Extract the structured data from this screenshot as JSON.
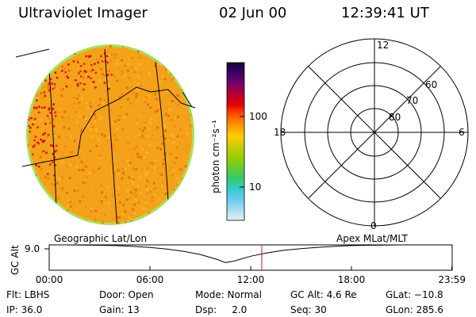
{
  "header": {
    "title": "Ultraviolet Imager",
    "date": "02 Jun 00",
    "time": "12:39:41 UT"
  },
  "left_panel": {
    "label": "Geographic Lat/Lon"
  },
  "right_panel": {
    "label": "Apex MLat/MLT",
    "mlt_labels": [
      "12",
      "18",
      "6",
      "0"
    ],
    "mlat_labels": [
      "60",
      "70",
      "80"
    ]
  },
  "colorbar": {
    "unit_label": "photon cm⁻²s⁻¹",
    "ticks": [
      "100",
      "10"
    ],
    "colors": [
      "#1a0033",
      "#3b0066",
      "#7a0066",
      "#b30033",
      "#e60000",
      "#ff5500",
      "#ff9900",
      "#ffcc00",
      "#cccc00",
      "#99cc00",
      "#66cc33",
      "#33cc66",
      "#33cccc",
      "#66ccee",
      "#aaddee",
      "#e6f0f0"
    ]
  },
  "chart_data": {
    "type": "line",
    "title": "",
    "ylabel": "GC Alt",
    "ytick": "9.0",
    "x_ticks": [
      "00:00",
      "06:00",
      "12:00",
      "18:00",
      "23:59"
    ],
    "x_hours": [
      0,
      1,
      2,
      3,
      4,
      5,
      6,
      7,
      8,
      9,
      10,
      10.5,
      11,
      12,
      13,
      14,
      15,
      16,
      17,
      18,
      19,
      20,
      21,
      22,
      23,
      23.98
    ],
    "y_values": [
      9.0,
      9.0,
      8.95,
      8.85,
      8.7,
      8.4,
      7.95,
      7.3,
      6.4,
      5.1,
      3.1,
      1.8,
      2.4,
      4.4,
      5.8,
      6.8,
      7.5,
      8.0,
      8.4,
      8.7,
      8.85,
      8.95,
      9.0,
      9.0,
      9.0,
      9.0
    ],
    "ylim": [
      0,
      9.0
    ],
    "current_time_hours": 12.66,
    "marker_color": "#cc2222"
  },
  "footer": {
    "flt": "Flt: LBHS",
    "ip": "IP: 36.0",
    "door": "Door: Open",
    "gain": "Gain: 13",
    "mode": "Mode: Normal",
    "dsp": "Dsp:     2.0",
    "gcalt": "GC Alt: 4.6 Re",
    "seq": "Seq: 30",
    "glat": "GLat: −10.8",
    "glon": "GLon: 285.6"
  }
}
